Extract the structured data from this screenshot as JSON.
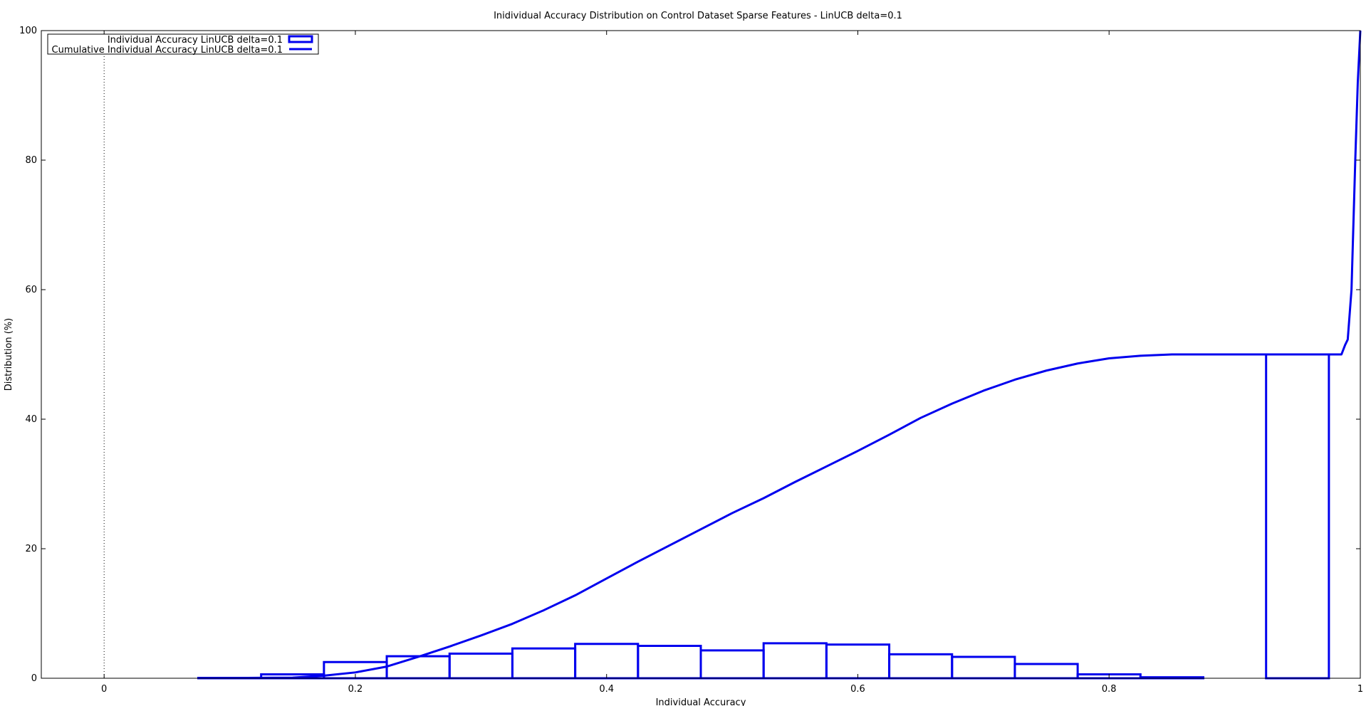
{
  "chart_data": {
    "type": "bar",
    "title": "Inidividual Accuracy Distribution on Control Dataset Sparse Features - LinUCB delta=0.1",
    "xlabel": "Individual Accuracy",
    "ylabel": "Distribution (%)",
    "xlim": [
      -0.05,
      1.0
    ],
    "ylim": [
      0,
      100
    ],
    "x_ticks": [
      0,
      0.2,
      0.4,
      0.6,
      0.8,
      1
    ],
    "x_tick_labels": [
      "0",
      "0.2",
      "0.4",
      "0.6",
      "0.8",
      "1"
    ],
    "y_ticks": [
      0,
      20,
      40,
      60,
      80,
      100
    ],
    "y_tick_labels": [
      "0",
      "20",
      "40",
      "60",
      "80",
      "100"
    ],
    "grid": false,
    "zero_line": "dotted vertical line at x=0",
    "legend_position": "top-left",
    "color": "#0000ee",
    "series": [
      {
        "name": "Individual Accuracy LinUCB delta=0.1",
        "kind": "histogram",
        "bin_width": 0.05,
        "bin_centers": [
          0.1,
          0.15,
          0.2,
          0.25,
          0.3,
          0.35,
          0.4,
          0.45,
          0.5,
          0.55,
          0.6,
          0.65,
          0.7,
          0.75,
          0.8,
          0.85,
          0.9,
          0.95
        ],
        "values": [
          0.05,
          0.6,
          2.5,
          3.4,
          3.8,
          4.6,
          5.3,
          5.0,
          4.3,
          5.4,
          5.2,
          3.7,
          3.3,
          2.2,
          0.6,
          0.15,
          0,
          50.0
        ]
      },
      {
        "name": "Cumulative Individual Accuracy LinUCB delta=0.1",
        "kind": "line",
        "x": [
          0.075,
          0.15,
          0.175,
          0.2,
          0.225,
          0.25,
          0.275,
          0.3,
          0.325,
          0.35,
          0.375,
          0.4,
          0.425,
          0.45,
          0.475,
          0.5,
          0.525,
          0.55,
          0.575,
          0.6,
          0.625,
          0.65,
          0.675,
          0.7,
          0.725,
          0.75,
          0.775,
          0.8,
          0.825,
          0.85,
          0.9,
          0.95,
          0.985,
          0.988,
          0.99,
          0.993,
          0.996,
          0.998,
          1.0
        ],
        "y": [
          0,
          0.1,
          0.4,
          0.9,
          1.8,
          3.3,
          4.9,
          6.6,
          8.4,
          10.5,
          12.8,
          15.4,
          18.0,
          20.5,
          23.0,
          25.5,
          27.8,
          30.3,
          32.7,
          35.1,
          37.6,
          40.2,
          42.4,
          44.4,
          46.1,
          47.5,
          48.6,
          49.4,
          49.8,
          50.0,
          50.0,
          50.0,
          50.0,
          51.5,
          52.3,
          60.0,
          80.0,
          92.0,
          100.0
        ]
      }
    ]
  }
}
